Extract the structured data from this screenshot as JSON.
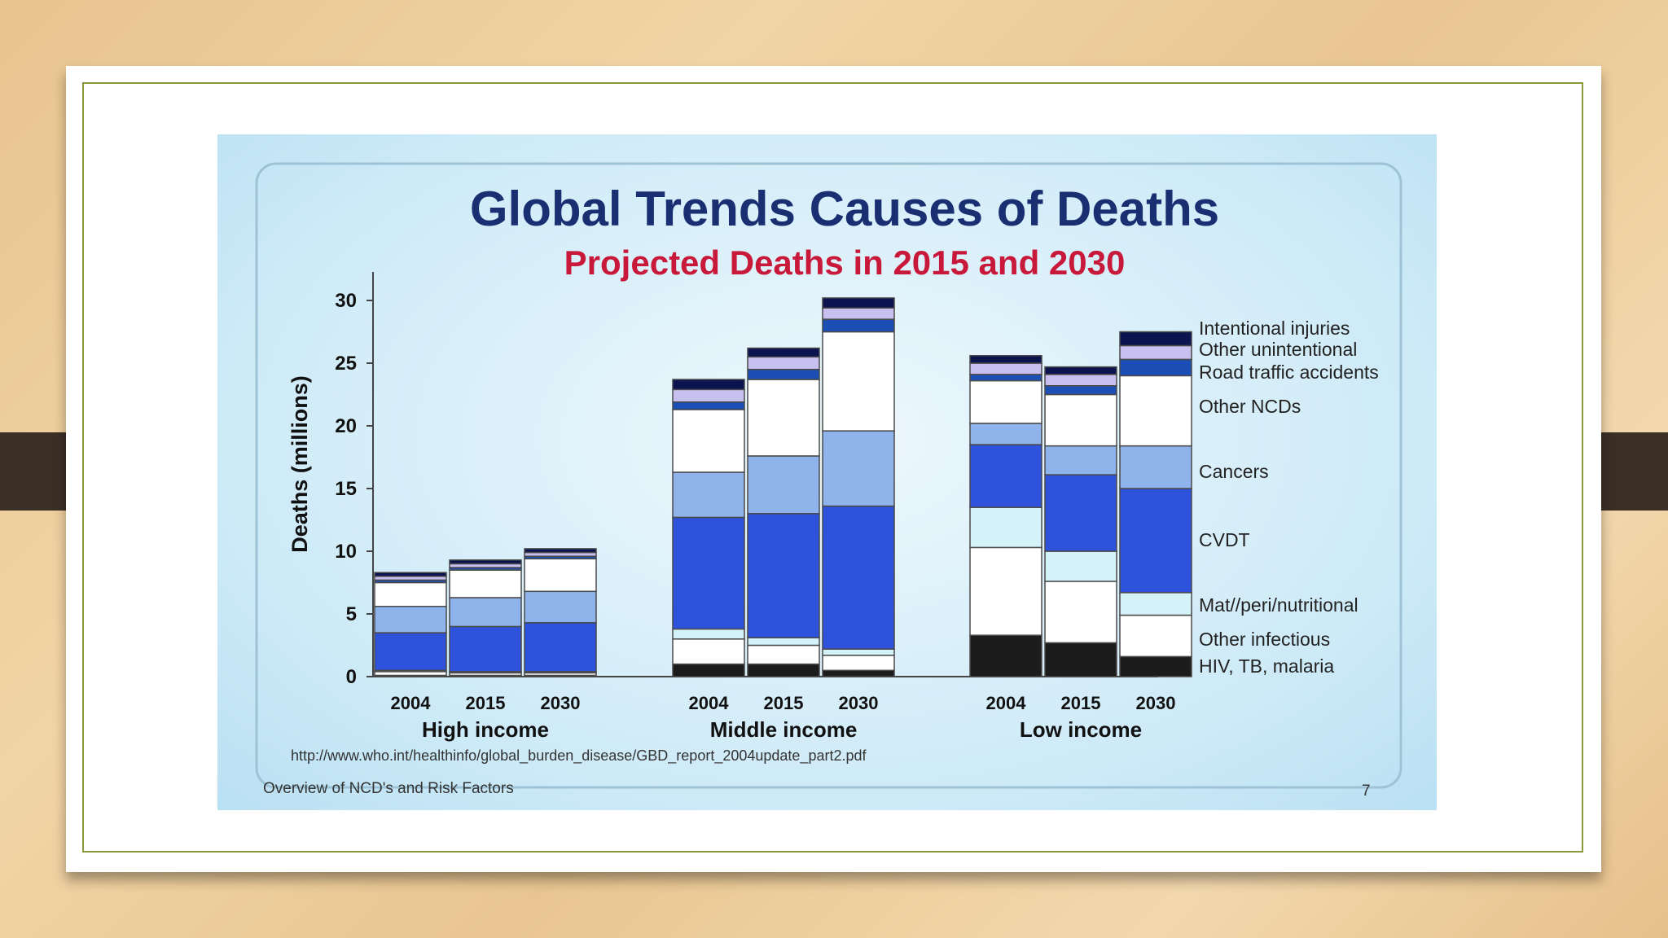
{
  "slide": {
    "footer_text": "Overview of NCD's and Risk Factors",
    "page_number": "7",
    "source_url": "http://www.who.int/healthinfo/global_burden_disease/GBD_report_2004update_part2.pdf"
  },
  "colors": {
    "hiv_tb_malaria": "#1c1c1c",
    "other_infectious": "#ffffff",
    "mat_peri_nutritional": "#d3f3f9",
    "cvd": "#2f52dc",
    "cancers": "#8fb4ec",
    "other_ncds": "#ffffff",
    "road_traffic": "#1c4fb5",
    "other_unintentional": "#c8c0ee",
    "intentional_injuries": "#0c1450",
    "title": "#1a2f72",
    "subtitle": "#c8193a"
  },
  "chart_data": {
    "type": "bar",
    "stacked": true,
    "title": "Global Trends Causes of Deaths",
    "subtitle": "Projected Deaths in 2015 and 2030",
    "ylabel": "Deaths (millions)",
    "ylim": [
      0,
      30
    ],
    "yticks": [
      0,
      5,
      10,
      15,
      20,
      25,
      30
    ],
    "groups": [
      "High income",
      "Middle income",
      "Low income"
    ],
    "categories": [
      "2004",
      "2015",
      "2030",
      "2004",
      "2015",
      "2030",
      "2004",
      "2015",
      "2030"
    ],
    "group_index": [
      0,
      0,
      0,
      1,
      1,
      1,
      2,
      2,
      2
    ],
    "legend_position": "right",
    "series": [
      {
        "name": "HIV, TB, malaria",
        "color_key": "hiv_tb_malaria",
        "values": [
          0.1,
          0.1,
          0.1,
          1.0,
          1.0,
          0.5,
          3.3,
          2.7,
          1.6
        ]
      },
      {
        "name": "Other infectious",
        "color_key": "other_infectious",
        "values": [
          0.3,
          0.2,
          0.2,
          2.0,
          1.5,
          1.2,
          7.0,
          4.9,
          3.3
        ]
      },
      {
        "name": "Mat//peri/nutritional",
        "color_key": "mat_peri_nutritional",
        "values": [
          0.1,
          0.1,
          0.1,
          0.8,
          0.6,
          0.5,
          3.2,
          2.4,
          1.8
        ]
      },
      {
        "name": "CVDT",
        "color_key": "cvd",
        "values": [
          3.0,
          3.6,
          3.9,
          8.9,
          9.9,
          11.4,
          5.0,
          6.1,
          8.3
        ]
      },
      {
        "name": "Cancers",
        "color_key": "cancers",
        "values": [
          2.1,
          2.3,
          2.5,
          3.6,
          4.6,
          6.0,
          1.7,
          2.3,
          3.4
        ]
      },
      {
        "name": "Other NCDs",
        "color_key": "other_ncds",
        "values": [
          1.9,
          2.2,
          2.6,
          5.0,
          6.1,
          7.9,
          3.4,
          4.1,
          5.6
        ]
      },
      {
        "name": "Road traffic accidents",
        "color_key": "road_traffic",
        "values": [
          0.2,
          0.2,
          0.2,
          0.6,
          0.8,
          1.0,
          0.5,
          0.7,
          1.3
        ]
      },
      {
        "name": "Other unintentional",
        "color_key": "other_unintentional",
        "values": [
          0.3,
          0.3,
          0.3,
          1.0,
          1.0,
          0.9,
          0.9,
          0.9,
          1.1
        ]
      },
      {
        "name": "Intentional injuries",
        "color_key": "intentional_injuries",
        "values": [
          0.3,
          0.3,
          0.3,
          0.8,
          0.7,
          0.8,
          0.6,
          0.6,
          1.1
        ]
      }
    ]
  }
}
